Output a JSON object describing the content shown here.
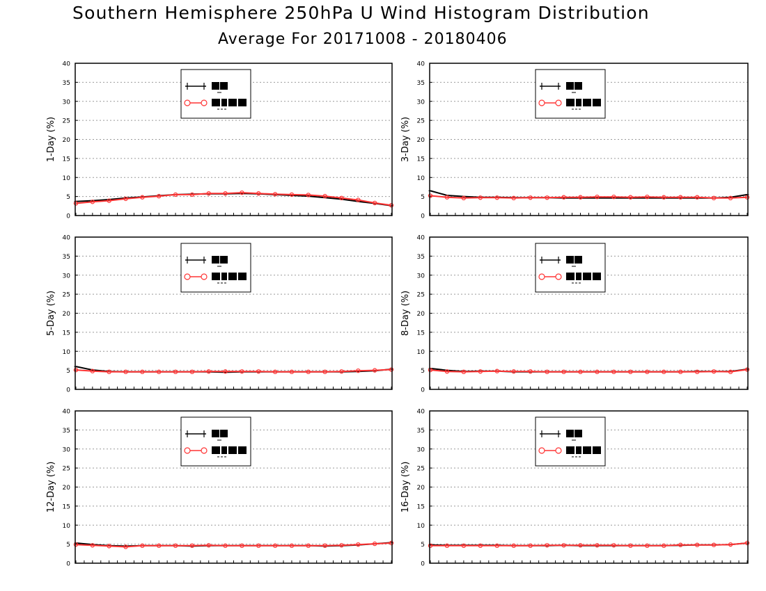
{
  "page": {
    "title": "Southern Hemisphere 250hPa U Wind Histogram Distribution",
    "subtitle": "Average For 20171008 - 20180406"
  },
  "colors": {
    "series_black": "#000000",
    "series_red": "#ff3333",
    "grid": "#999999",
    "frame": "#000000"
  },
  "chart_data": [
    {
      "type": "line",
      "ylabel": "1-Day (%)",
      "ylim": [
        0,
        40
      ],
      "yticks": [
        "0",
        "5",
        "10",
        "15",
        "20",
        "25",
        "30",
        "35",
        "40"
      ],
      "grid": true,
      "legend_placement": "top-left",
      "series": [
        {
          "marker": "cross",
          "values": [
            3.7,
            3.9,
            4.2,
            4.6,
            4.9,
            5.2,
            5.5,
            5.6,
            5.7,
            5.7,
            5.8,
            5.7,
            5.5,
            5.3,
            5.1,
            4.7,
            4.3,
            3.7,
            3.2,
            2.6
          ]
        },
        {
          "marker": "circle",
          "values": [
            3.2,
            3.6,
            3.9,
            4.4,
            4.8,
            5.1,
            5.5,
            5.5,
            5.8,
            5.8,
            6.0,
            5.8,
            5.6,
            5.5,
            5.4,
            5.1,
            4.6,
            4.1,
            3.3,
            2.7
          ]
        }
      ]
    },
    {
      "type": "line",
      "ylabel": "3-Day (%)",
      "ylim": [
        0,
        40
      ],
      "yticks": [
        "0",
        "5",
        "10",
        "15",
        "20",
        "25",
        "30",
        "35",
        "40"
      ],
      "grid": true,
      "legend_placement": "top-left",
      "series": [
        {
          "marker": "cross",
          "values": [
            6.5,
            5.3,
            5.0,
            4.8,
            4.8,
            4.7,
            4.7,
            4.7,
            4.6,
            4.6,
            4.6,
            4.6,
            4.6,
            4.6,
            4.6,
            4.6,
            4.6,
            4.6,
            4.8,
            5.5
          ]
        },
        {
          "marker": "circle",
          "values": [
            5.2,
            4.8,
            4.6,
            4.7,
            4.7,
            4.6,
            4.7,
            4.7,
            4.8,
            4.8,
            4.9,
            4.9,
            4.8,
            4.9,
            4.8,
            4.8,
            4.8,
            4.6,
            4.6,
            4.8
          ]
        }
      ]
    },
    {
      "type": "line",
      "ylabel": "5-Day (%)",
      "ylim": [
        0,
        40
      ],
      "yticks": [
        "0",
        "5",
        "10",
        "15",
        "20",
        "25",
        "30",
        "35",
        "40"
      ],
      "grid": true,
      "legend_placement": "top-left",
      "series": [
        {
          "marker": "cross",
          "values": [
            6.0,
            5.1,
            4.7,
            4.6,
            4.6,
            4.6,
            4.6,
            4.6,
            4.6,
            4.5,
            4.6,
            4.6,
            4.6,
            4.6,
            4.6,
            4.6,
            4.6,
            4.7,
            4.9,
            5.3
          ]
        },
        {
          "marker": "circle",
          "values": [
            5.1,
            4.8,
            4.6,
            4.6,
            4.6,
            4.6,
            4.6,
            4.6,
            4.7,
            4.7,
            4.7,
            4.7,
            4.6,
            4.6,
            4.6,
            4.6,
            4.7,
            4.9,
            5.0,
            5.2
          ]
        }
      ]
    },
    {
      "type": "line",
      "ylabel": "8-Day (%)",
      "ylim": [
        0,
        40
      ],
      "yticks": [
        "0",
        "5",
        "10",
        "15",
        "20",
        "25",
        "30",
        "35",
        "40"
      ],
      "grid": true,
      "legend_placement": "top-left",
      "series": [
        {
          "marker": "cross",
          "values": [
            5.5,
            5.0,
            4.7,
            4.8,
            4.8,
            4.6,
            4.6,
            4.6,
            4.6,
            4.6,
            4.6,
            4.6,
            4.6,
            4.6,
            4.6,
            4.6,
            4.7,
            4.7,
            4.7,
            5.3
          ]
        },
        {
          "marker": "circle",
          "values": [
            5.1,
            4.7,
            4.6,
            4.7,
            4.8,
            4.7,
            4.7,
            4.6,
            4.6,
            4.6,
            4.6,
            4.6,
            4.6,
            4.6,
            4.6,
            4.6,
            4.6,
            4.7,
            4.6,
            5.2
          ]
        }
      ]
    },
    {
      "type": "line",
      "ylabel": "12-Day (%)",
      "ylim": [
        0,
        40
      ],
      "yticks": [
        "0",
        "5",
        "10",
        "15",
        "20",
        "25",
        "30",
        "35",
        "40"
      ],
      "grid": true,
      "legend_placement": "top-left",
      "series": [
        {
          "marker": "cross",
          "values": [
            5.3,
            4.9,
            4.6,
            4.5,
            4.6,
            4.6,
            4.6,
            4.5,
            4.6,
            4.6,
            4.6,
            4.6,
            4.6,
            4.6,
            4.6,
            4.5,
            4.6,
            4.8,
            5.1,
            5.4
          ]
        },
        {
          "marker": "circle",
          "values": [
            4.9,
            4.7,
            4.5,
            4.3,
            4.6,
            4.6,
            4.6,
            4.6,
            4.7,
            4.6,
            4.6,
            4.6,
            4.6,
            4.6,
            4.6,
            4.6,
            4.7,
            4.9,
            5.1,
            5.3
          ]
        }
      ]
    },
    {
      "type": "line",
      "ylabel": "16-Day (%)",
      "ylim": [
        0,
        40
      ],
      "yticks": [
        "0",
        "5",
        "10",
        "15",
        "20",
        "25",
        "30",
        "35",
        "40"
      ],
      "grid": true,
      "legend_placement": "top-left",
      "series": [
        {
          "marker": "cross",
          "values": [
            4.8,
            4.7,
            4.7,
            4.7,
            4.7,
            4.6,
            4.6,
            4.6,
            4.7,
            4.6,
            4.6,
            4.6,
            4.6,
            4.6,
            4.6,
            4.7,
            4.8,
            4.8,
            4.9,
            5.3
          ]
        },
        {
          "marker": "circle",
          "values": [
            4.6,
            4.6,
            4.6,
            4.6,
            4.6,
            4.6,
            4.6,
            4.7,
            4.7,
            4.7,
            4.7,
            4.7,
            4.6,
            4.6,
            4.6,
            4.8,
            4.8,
            4.8,
            4.9,
            5.3
          ]
        }
      ]
    }
  ]
}
